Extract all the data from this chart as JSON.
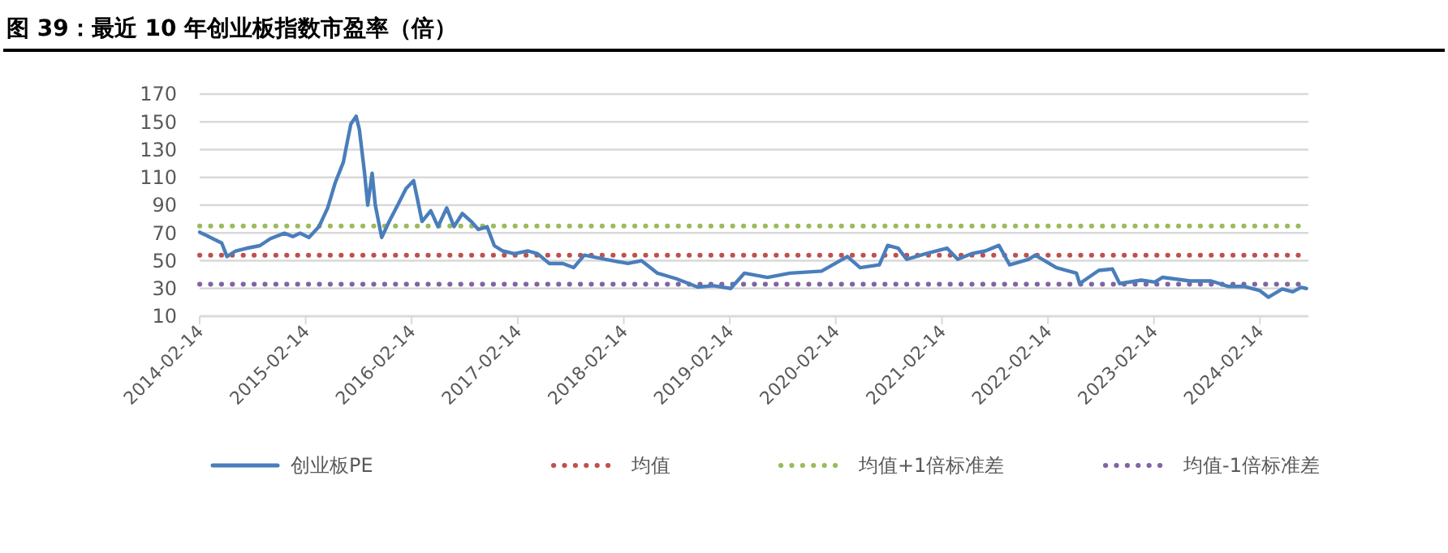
{
  "chart_data": {
    "type": "line",
    "title": "图 39：最近 10 年创业板指数市盈率（倍）",
    "xlim": [
      "2014-02-14",
      "2024-07-30"
    ],
    "xticks": [
      "2014-02-14",
      "2015-02-14",
      "2016-02-14",
      "2017-02-14",
      "2018-02-14",
      "2019-02-14",
      "2020-02-14",
      "2021-02-14",
      "2022-02-14",
      "2023-02-14",
      "2024-02-14"
    ],
    "ylim": [
      10,
      170
    ],
    "yticks": [
      10,
      30,
      50,
      70,
      90,
      110,
      130,
      150,
      170
    ],
    "grid": "y",
    "legend": "bottom",
    "line_style": "solid",
    "marker": "none",
    "series": [
      {
        "name": "创业板PE",
        "color": "#4a7ebb",
        "x": [
          "2014-02-14",
          "2014-03-24",
          "2014-05-01",
          "2014-05-19",
          "2014-06-18",
          "2014-07-24",
          "2014-09-09",
          "2014-10-16",
          "2014-12-03",
          "2015-01-01",
          "2015-01-26",
          "2015-02-25",
          "2015-04-01",
          "2015-05-01",
          "2015-05-26",
          "2015-06-24",
          "2015-07-05",
          "2015-07-20",
          "2015-08-07",
          "2015-08-18",
          "2015-09-05",
          "2015-09-16",
          "2015-10-01",
          "2015-10-12",
          "2015-11-03",
          "2015-11-29",
          "2015-12-28",
          "2016-01-26",
          "2016-02-21",
          "2016-03-21",
          "2016-04-20",
          "2016-05-15",
          "2016-06-14",
          "2016-07-09",
          "2016-08-07",
          "2016-09-06",
          "2016-10-01",
          "2016-10-31",
          "2016-11-25",
          "2016-12-24",
          "2017-02-02",
          "2017-03-21",
          "2017-04-23",
          "2017-06-02",
          "2017-07-19",
          "2017-08-25",
          "2017-10-01",
          "2017-12-13",
          "2018-02-28",
          "2018-04-16",
          "2018-06-10",
          "2018-08-14",
          "2018-10-26",
          "2018-12-20",
          "2019-02-17",
          "2019-04-05",
          "2019-06-24",
          "2019-09-09",
          "2019-12-27",
          "2020-03-25",
          "2020-05-08",
          "2020-07-13",
          "2020-08-11",
          "2020-09-16",
          "2020-10-15",
          "2020-12-20",
          "2021-03-03",
          "2021-04-09",
          "2021-05-26",
          "2021-07-13",
          "2021-08-29",
          "2021-10-05",
          "2021-12-09",
          "2022-01-01",
          "2022-03-15",
          "2022-05-23",
          "2022-06-03",
          "2022-08-08",
          "2022-09-24",
          "2022-10-19",
          "2023-01-01",
          "2023-02-17",
          "2023-03-15",
          "2023-06-18",
          "2023-08-30",
          "2023-10-27",
          "2023-12-20",
          "2024-02-14",
          "2024-03-14",
          "2024-05-01",
          "2024-06-06",
          "2024-07-05",
          "2024-07-23"
        ],
        "values": [
          70.5,
          66.7,
          62.7,
          53,
          57,
          58.9,
          60.8,
          65.9,
          69.8,
          67.4,
          69.8,
          66.7,
          74.5,
          88,
          105.6,
          121,
          133,
          148.6,
          154,
          144.6,
          113,
          90,
          113,
          90,
          66.7,
          78.3,
          90,
          102,
          107.6,
          78.3,
          86,
          74.5,
          88,
          74.5,
          84,
          78.3,
          72.5,
          74.5,
          60.8,
          57,
          55,
          57,
          55,
          48,
          48,
          45,
          54,
          51,
          48,
          50,
          41,
          37,
          31,
          32,
          30,
          41,
          38,
          41,
          42.5,
          53,
          45,
          47,
          61,
          59,
          51,
          55,
          59,
          51,
          55,
          57,
          61,
          47,
          51,
          54,
          45,
          41,
          33.5,
          43,
          44,
          33.5,
          36,
          34.6,
          38,
          35.4,
          35.4,
          31.5,
          31.5,
          28.4,
          23.7,
          29.6,
          27.6,
          30.8,
          30
        ]
      }
    ],
    "ref_lines": [
      {
        "axis": "y",
        "value": 54,
        "label": "均值",
        "color": "#c0504d",
        "line_style": "dotted"
      },
      {
        "axis": "y",
        "value": 75,
        "label": "均值+1倍标准差",
        "color": "#9bbb59",
        "line_style": "dotted"
      },
      {
        "axis": "y",
        "value": 33,
        "label": "均值-1倍标准差",
        "color": "#8064a2",
        "line_style": "dotted"
      }
    ]
  }
}
